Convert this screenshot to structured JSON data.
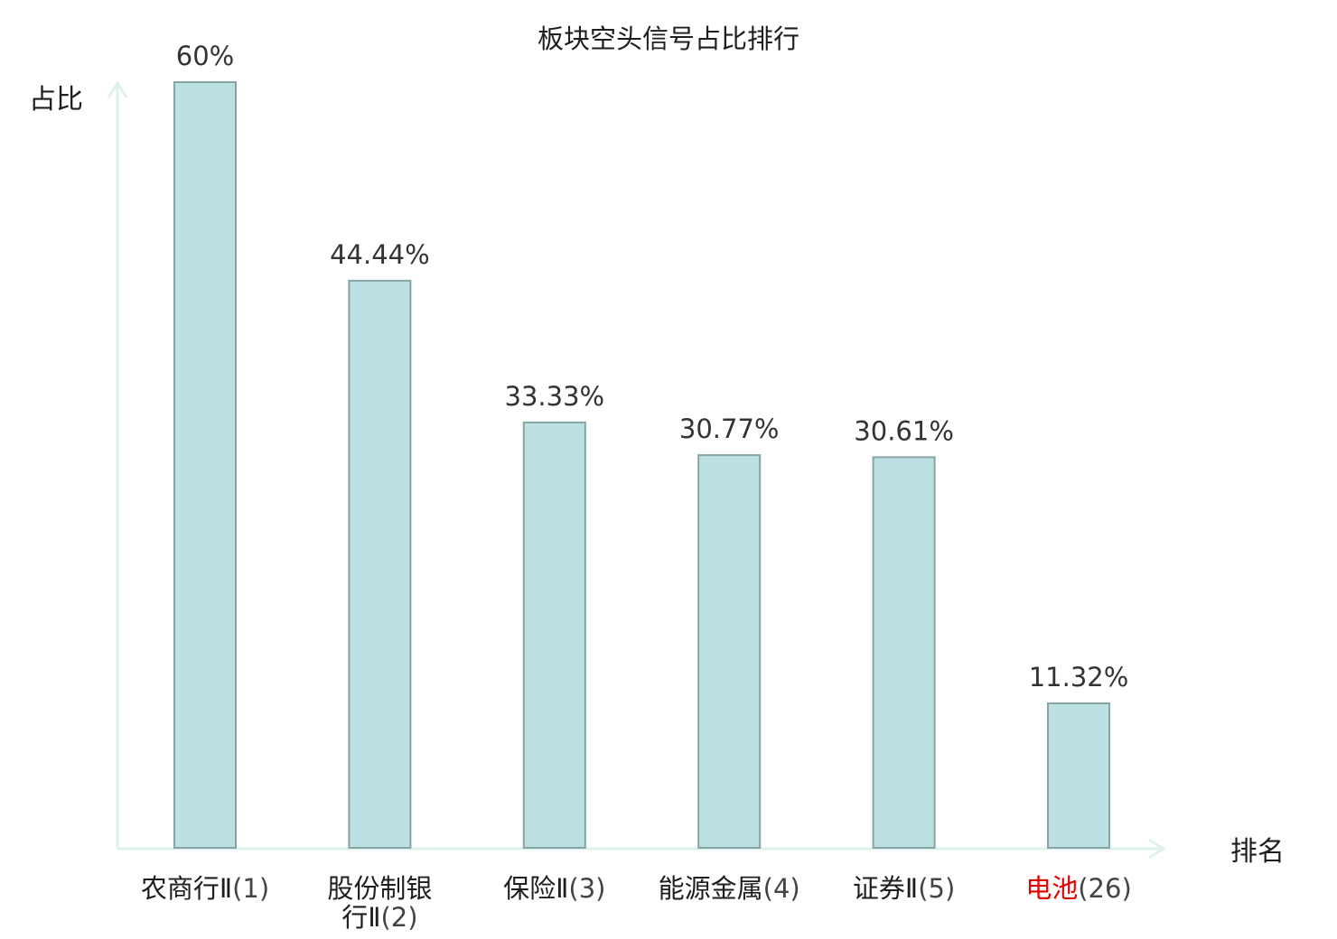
{
  "chart_data": {
    "type": "bar",
    "title": "板块空头信号占比排行",
    "ylabel": "占比",
    "xlabel": "排名",
    "categories": [
      "农商行Ⅱ(1)",
      "股份制银行Ⅱ(2)",
      "保险Ⅱ(3)",
      "能源金属(4)",
      "证券Ⅱ(5)",
      "电池(26)"
    ],
    "category_lines": [
      [
        {
          "name": "农商行Ⅱ",
          "rank": "(1)"
        }
      ],
      [
        {
          "name": "股份制银",
          "rank": ""
        },
        {
          "name": "行Ⅱ",
          "rank": "(2)"
        }
      ],
      [
        {
          "name": "保险Ⅱ",
          "rank": "(3)"
        }
      ],
      [
        {
          "name": "能源金属",
          "rank": "(4)"
        }
      ],
      [
        {
          "name": "证券Ⅱ",
          "rank": "(5)"
        }
      ],
      [
        {
          "name": "电池",
          "rank": "(26)"
        }
      ]
    ],
    "values": [
      60,
      44.44,
      33.33,
      30.77,
      30.61,
      11.32
    ],
    "value_labels": [
      "60%",
      "44.44%",
      "33.33%",
      "30.77%",
      "30.61%",
      "11.32%"
    ],
    "highlight_index": 5,
    "ylim": [
      0,
      60
    ],
    "grid": false,
    "legend": "none",
    "colors": {
      "bar_fill": "#bde0e2",
      "bar_stroke": "#86a4a6",
      "axis": "#ddf1ef",
      "highlight": "#e00000",
      "text": "#1e1e1e",
      "value_text": "#333333"
    }
  }
}
